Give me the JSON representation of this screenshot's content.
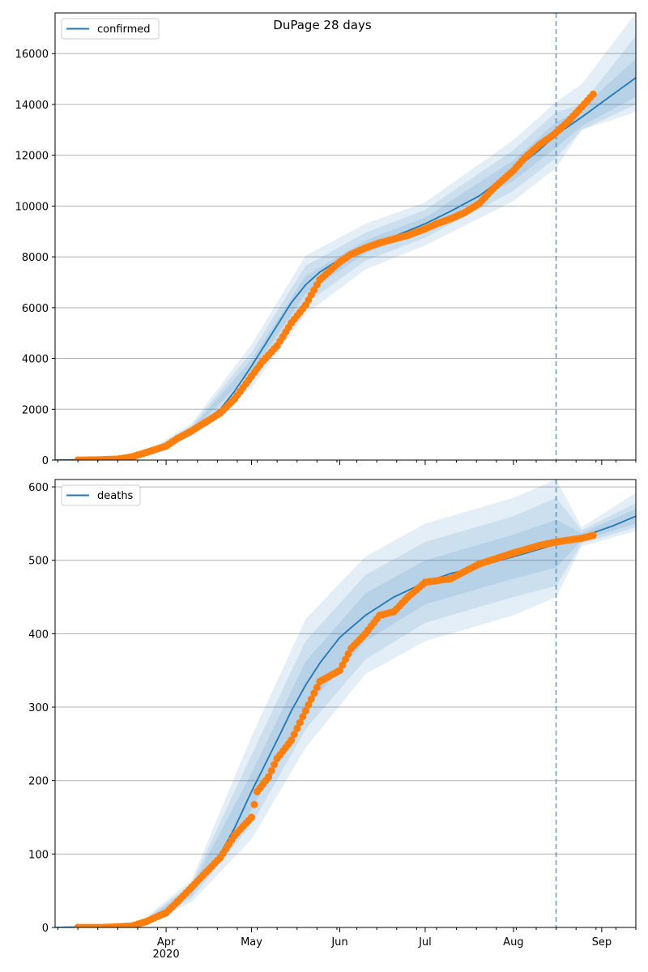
{
  "title": "DuPage 28 days",
  "x_axis": {
    "month_labels": [
      "Apr",
      "May",
      "Jun",
      "Jul",
      "Aug",
      "Sep"
    ],
    "year_label": "2020"
  },
  "colors": {
    "model_line": "#1f77b4",
    "observed": "#ff7f0e",
    "band": "#1f77b4",
    "forecast_start_line": "#1f77b4",
    "grid": "#b0b0b0"
  },
  "chart_data": [
    {
      "type": "line",
      "legend": "confirmed",
      "legend_position": "upper-left",
      "x_type": "date",
      "x_range": [
        "2020-02-22",
        "2020-09-13"
      ],
      "ylim": [
        0,
        17600
      ],
      "yticks": [
        0,
        2000,
        4000,
        6000,
        8000,
        10000,
        12000,
        14000,
        16000
      ],
      "grid": "horizontal",
      "forecast_start": "2020-08-16",
      "model_curve": {
        "x": [
          "2020-02-22",
          "2020-03-01",
          "2020-03-10",
          "2020-03-20",
          "2020-03-25",
          "2020-04-01",
          "2020-04-10",
          "2020-04-20",
          "2020-04-25",
          "2020-05-01",
          "2020-05-10",
          "2020-05-15",
          "2020-05-20",
          "2020-05-25",
          "2020-06-01",
          "2020-06-10",
          "2020-06-20",
          "2020-07-01",
          "2020-07-10",
          "2020-07-20",
          "2020-08-01",
          "2020-08-10",
          "2020-08-16",
          "2020-08-25",
          "2020-09-05",
          "2020-09-13"
        ],
        "y": [
          0,
          10,
          30,
          120,
          250,
          600,
          1200,
          2000,
          2700,
          3700,
          5300,
          6200,
          6900,
          7400,
          7900,
          8400,
          8800,
          9300,
          9800,
          10400,
          11400,
          12200,
          12800,
          13500,
          14400,
          15050
        ]
      },
      "bands": [
        {
          "level": "inner",
          "x": [
            "2020-03-25",
            "2020-04-10",
            "2020-05-01",
            "2020-05-20",
            "2020-06-10",
            "2020-07-01",
            "2020-08-01",
            "2020-08-16",
            "2020-08-25",
            "2020-09-13"
          ],
          "low": [
            230,
            1130,
            3450,
            6550,
            8150,
            9050,
            11000,
            12300,
            13150,
            14300
          ],
          "high": [
            270,
            1270,
            3950,
            7250,
            8650,
            9550,
            11800,
            13300,
            13850,
            15800
          ]
        },
        {
          "level": "middle",
          "x": [
            "2020-03-25",
            "2020-04-10",
            "2020-05-01",
            "2020-05-20",
            "2020-06-10",
            "2020-07-01",
            "2020-08-01",
            "2020-08-16",
            "2020-08-25",
            "2020-09-13"
          ],
          "low": [
            200,
            1050,
            3150,
            6150,
            7850,
            8750,
            10600,
            11900,
            13000,
            14000
          ],
          "high": [
            300,
            1350,
            4250,
            7650,
            8950,
            9850,
            12200,
            13700,
            14000,
            16700
          ]
        },
        {
          "level": "outer",
          "x": [
            "2020-03-25",
            "2020-04-10",
            "2020-05-01",
            "2020-05-20",
            "2020-06-10",
            "2020-07-01",
            "2020-08-01",
            "2020-08-16",
            "2020-08-25",
            "2020-09-13"
          ],
          "low": [
            170,
            950,
            2850,
            5750,
            7500,
            8450,
            10200,
            11500,
            13000,
            13700
          ],
          "high": [
            330,
            1450,
            4550,
            8050,
            9300,
            10150,
            12600,
            14100,
            14800,
            17600
          ]
        }
      ],
      "observed": {
        "x": [
          "2020-03-01",
          "2020-03-08",
          "2020-03-15",
          "2020-03-20",
          "2020-03-25",
          "2020-04-01",
          "2020-04-05",
          "2020-04-10",
          "2020-04-15",
          "2020-04-20",
          "2020-04-25",
          "2020-05-01",
          "2020-05-05",
          "2020-05-10",
          "2020-05-15",
          "2020-05-20",
          "2020-05-25",
          "2020-06-01",
          "2020-06-05",
          "2020-06-10",
          "2020-06-15",
          "2020-06-20",
          "2020-06-25",
          "2020-07-01",
          "2020-07-05",
          "2020-07-10",
          "2020-07-15",
          "2020-07-20",
          "2020-07-25",
          "2020-08-01",
          "2020-08-05",
          "2020-08-10",
          "2020-08-15",
          "2020-08-20",
          "2020-08-25",
          "2020-08-29"
        ],
        "y": [
          0,
          10,
          40,
          130,
          300,
          550,
          850,
          1150,
          1500,
          1850,
          2400,
          3300,
          3900,
          4500,
          5400,
          6100,
          7100,
          7800,
          8100,
          8350,
          8550,
          8700,
          8850,
          9100,
          9300,
          9500,
          9750,
          10100,
          10700,
          11400,
          11900,
          12400,
          12800,
          13300,
          13900,
          14400
        ]
      }
    },
    {
      "type": "line",
      "legend": "deaths",
      "legend_position": "upper-left",
      "x_type": "date",
      "x_range": [
        "2020-02-22",
        "2020-09-13"
      ],
      "ylim": [
        0,
        610
      ],
      "yticks": [
        0,
        100,
        200,
        300,
        400,
        500,
        600
      ],
      "grid": "horizontal",
      "forecast_start": "2020-08-16",
      "model_curve": {
        "x": [
          "2020-02-22",
          "2020-03-20",
          "2020-03-25",
          "2020-04-01",
          "2020-04-10",
          "2020-04-20",
          "2020-04-25",
          "2020-05-01",
          "2020-05-10",
          "2020-05-15",
          "2020-05-20",
          "2020-05-25",
          "2020-06-01",
          "2020-06-10",
          "2020-06-20",
          "2020-07-01",
          "2020-07-10",
          "2020-07-20",
          "2020-08-01",
          "2020-08-10",
          "2020-08-16",
          "2020-08-25",
          "2020-09-05",
          "2020-09-13"
        ],
        "y": [
          0,
          2,
          8,
          20,
          50,
          100,
          135,
          185,
          255,
          295,
          330,
          360,
          395,
          425,
          450,
          470,
          482,
          492,
          505,
          515,
          522,
          532,
          547,
          560
        ]
      },
      "bands": [
        {
          "level": "inner",
          "x": [
            "2020-03-25",
            "2020-04-10",
            "2020-05-01",
            "2020-05-20",
            "2020-06-10",
            "2020-07-01",
            "2020-08-01",
            "2020-08-16",
            "2020-08-25",
            "2020-09-13"
          ],
          "low": [
            6,
            44,
            160,
            298,
            390,
            440,
            475,
            490,
            527,
            550
          ],
          "high": [
            10,
            56,
            210,
            362,
            455,
            500,
            535,
            555,
            537,
            570
          ]
        },
        {
          "level": "middle",
          "x": [
            "2020-03-25",
            "2020-04-10",
            "2020-05-01",
            "2020-05-20",
            "2020-06-10",
            "2020-07-01",
            "2020-08-01",
            "2020-08-16",
            "2020-08-25",
            "2020-09-13"
          ],
          "low": [
            4,
            40,
            140,
            270,
            365,
            415,
            450,
            465,
            523,
            545
          ],
          "high": [
            12,
            60,
            235,
            390,
            480,
            525,
            560,
            585,
            541,
            578
          ]
        },
        {
          "level": "outer",
          "x": [
            "2020-03-25",
            "2020-04-10",
            "2020-05-01",
            "2020-05-20",
            "2020-06-10",
            "2020-07-01",
            "2020-08-01",
            "2020-08-16",
            "2020-08-25",
            "2020-09-13"
          ],
          "low": [
            2,
            35,
            120,
            245,
            345,
            390,
            425,
            450,
            519,
            540
          ],
          "high": [
            14,
            65,
            260,
            420,
            505,
            550,
            585,
            610,
            545,
            592
          ]
        }
      ],
      "observed": {
        "x": [
          "2020-03-01",
          "2020-03-10",
          "2020-03-20",
          "2020-03-25",
          "2020-04-01",
          "2020-04-05",
          "2020-04-10",
          "2020-04-15",
          "2020-04-20",
          "2020-04-25",
          "2020-05-01",
          "2020-05-03",
          "2020-05-07",
          "2020-05-10",
          "2020-05-15",
          "2020-05-20",
          "2020-05-25",
          "2020-06-01",
          "2020-06-05",
          "2020-06-10",
          "2020-06-15",
          "2020-06-20",
          "2020-06-25",
          "2020-07-01",
          "2020-07-10",
          "2020-07-20",
          "2020-08-01",
          "2020-08-10",
          "2020-08-16",
          "2020-08-25",
          "2020-08-29"
        ],
        "y": [
          0,
          0,
          2,
          8,
          20,
          35,
          55,
          75,
          95,
          125,
          150,
          185,
          205,
          230,
          255,
          295,
          335,
          350,
          380,
          400,
          425,
          430,
          450,
          470,
          475,
          495,
          510,
          520,
          525,
          530,
          534
        ]
      }
    }
  ]
}
